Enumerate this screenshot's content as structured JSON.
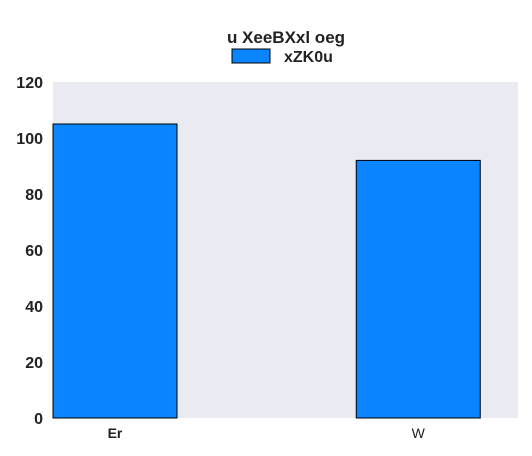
{
  "chart_data": {
    "type": "bar",
    "title": "u XeeBXxl oeg",
    "categories": [
      "Er",
      "W"
    ],
    "series": [
      {
        "name": "xZK0u",
        "values": [
          105,
          92
        ],
        "color": "#0a84ff"
      }
    ],
    "ylim": [
      0,
      120
    ],
    "yticks": [
      0,
      20,
      40,
      60,
      80,
      100,
      120
    ],
    "xlabel": "",
    "ylabel": "",
    "grid": false,
    "legend_position": "top-center",
    "plot_background": "#eaeaf2",
    "bar_edge_color": "#000000"
  }
}
